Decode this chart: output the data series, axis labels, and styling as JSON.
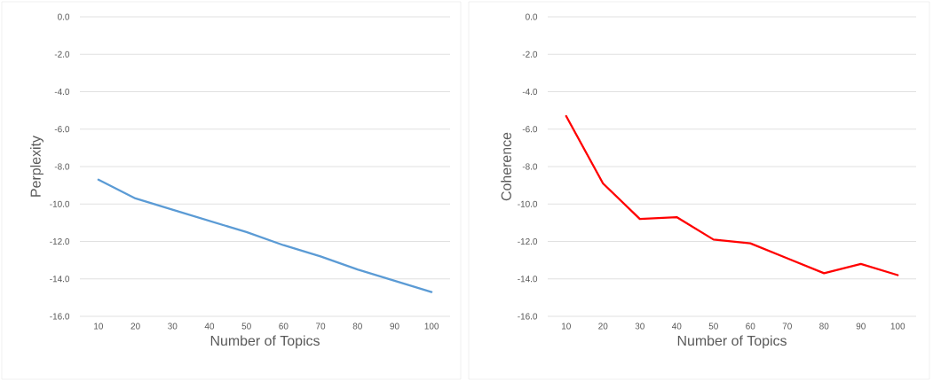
{
  "chart_data": [
    {
      "type": "line",
      "xlabel": "Number of Topics",
      "ylabel": "Perplexity",
      "categories": [
        "10",
        "20",
        "30",
        "40",
        "50",
        "60",
        "70",
        "80",
        "90",
        "100"
      ],
      "series": [
        {
          "color": "#5b9bd5",
          "values": [
            -8.7,
            -9.7,
            -10.3,
            -10.9,
            -11.5,
            -12.2,
            -12.8,
            -13.5,
            -14.1,
            -14.7
          ]
        }
      ],
      "ylim": [
        -16,
        0
      ],
      "yticks": [
        {
          "value": 0,
          "label": "0.0"
        },
        {
          "value": -2,
          "label": "-2.0"
        },
        {
          "value": -4,
          "label": "-4.0"
        },
        {
          "value": -6,
          "label": "-6.0"
        },
        {
          "value": -8,
          "label": "-8.0"
        },
        {
          "value": -10,
          "label": "-10.0"
        },
        {
          "value": -12,
          "label": "-12.0"
        },
        {
          "value": -14,
          "label": "-14.0"
        },
        {
          "value": -16,
          "label": "-16.0"
        }
      ],
      "grid": "y"
    },
    {
      "type": "line",
      "xlabel": "Number of Topics",
      "ylabel": "Coherence",
      "categories": [
        "10",
        "20",
        "30",
        "40",
        "50",
        "60",
        "70",
        "80",
        "90",
        "100"
      ],
      "series": [
        {
          "color": "#ff0000",
          "values": [
            -5.3,
            -8.9,
            -10.8,
            -10.7,
            -11.9,
            -12.1,
            -12.9,
            -13.7,
            -13.2,
            -13.8
          ]
        }
      ],
      "ylim": [
        -16,
        0
      ],
      "yticks": [
        {
          "value": 0,
          "label": "0.0"
        },
        {
          "value": -2,
          "label": "-2.0"
        },
        {
          "value": -4,
          "label": "-4.0"
        },
        {
          "value": -6,
          "label": "-6.0"
        },
        {
          "value": -8,
          "label": "-8.0"
        },
        {
          "value": -10,
          "label": "-10.0"
        },
        {
          "value": -12,
          "label": "-12.0"
        },
        {
          "value": -14,
          "label": "-14.0"
        },
        {
          "value": -16,
          "label": "-16.0"
        }
      ],
      "grid": "y"
    }
  ]
}
